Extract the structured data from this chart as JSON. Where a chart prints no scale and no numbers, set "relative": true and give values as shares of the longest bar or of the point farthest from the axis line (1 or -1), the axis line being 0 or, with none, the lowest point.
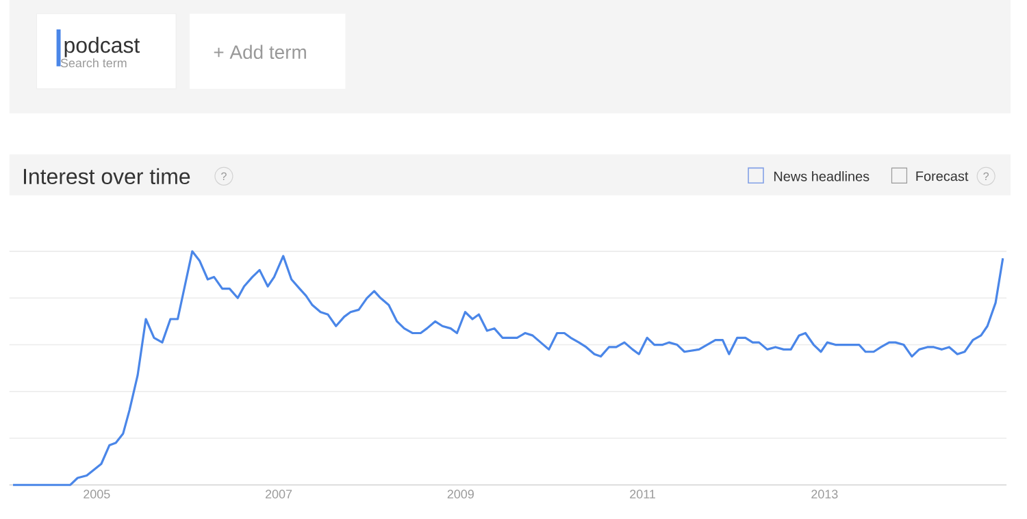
{
  "chart_data": {
    "type": "line",
    "title": "Interest over time",
    "relative": true,
    "grid": "y",
    "legend": "top left",
    "line_style": "solid",
    "marker": "none",
    "xlim": [
      2004.04,
      2015.0
    ],
    "xticks": [
      2005,
      2007,
      2009,
      2011,
      2013
    ],
    "annotations": [
      "Search term",
      "+ Add term",
      "News headlines",
      "Forecast",
      "?",
      "?"
    ],
    "series": [
      {
        "name": "podcast",
        "color": "#4a86e8",
        "x": [
          2004.08,
          2004.71,
          2004.79,
          2004.89,
          2005.05,
          2005.14,
          2005.21,
          2005.29,
          2005.36,
          2005.45,
          2005.54,
          2005.63,
          2005.72,
          2005.81,
          2005.89,
          2006.05,
          2006.13,
          2006.22,
          2006.29,
          2006.38,
          2006.46,
          2006.55,
          2006.62,
          2006.71,
          2006.79,
          2006.88,
          2006.95,
          2007.05,
          2007.14,
          2007.23,
          2007.3,
          2007.37,
          2007.46,
          2007.54,
          2007.63,
          2007.72,
          2007.79,
          2007.88,
          2007.97,
          2008.05,
          2008.12,
          2008.21,
          2008.3,
          2008.38,
          2008.47,
          2008.56,
          2008.63,
          2008.72,
          2008.8,
          2008.89,
          2008.96,
          2009.05,
          2009.13,
          2009.2,
          2009.29,
          2009.37,
          2009.46,
          2009.53,
          2009.62,
          2009.71,
          2009.79,
          2009.88,
          2009.97,
          2010.06,
          2010.14,
          2010.21,
          2010.3,
          2010.38,
          2010.47,
          2010.54,
          2010.63,
          2010.71,
          2010.8,
          2010.89,
          2010.96,
          2011.05,
          2011.13,
          2011.22,
          2011.29,
          2011.38,
          2011.46,
          2011.62,
          2011.71,
          2011.8,
          2011.88,
          2011.95,
          2012.04,
          2012.13,
          2012.21,
          2012.28,
          2012.37,
          2012.46,
          2012.55,
          2012.63,
          2012.72,
          2012.79,
          2012.88,
          2012.96,
          2013.03,
          2013.12,
          2013.21,
          2013.3,
          2013.38,
          2013.45,
          2013.54,
          2013.62,
          2013.71,
          2013.78,
          2013.87,
          2013.96,
          2014.04,
          2014.13,
          2014.2,
          2014.29,
          2014.37,
          2014.46,
          2014.54,
          2014.63,
          2014.72,
          2014.79,
          2014.88,
          2014.96
        ],
        "values": [
          0,
          0,
          0.03,
          0.04,
          0.09,
          0.17,
          0.18,
          0.22,
          0.32,
          0.47,
          0.71,
          0.63,
          0.61,
          0.71,
          0.71,
          1,
          0.96,
          0.88,
          0.89,
          0.84,
          0.84,
          0.8,
          0.85,
          0.89,
          0.92,
          0.85,
          0.89,
          0.98,
          0.88,
          0.84,
          0.81,
          0.77,
          0.74,
          0.73,
          0.68,
          0.72,
          0.74,
          0.75,
          0.8,
          0.83,
          0.8,
          0.77,
          0.7,
          0.67,
          0.65,
          0.65,
          0.67,
          0.7,
          0.68,
          0.67,
          0.65,
          0.74,
          0.71,
          0.73,
          0.66,
          0.67,
          0.63,
          0.63,
          0.63,
          0.65,
          0.64,
          0.61,
          0.58,
          0.65,
          0.65,
          0.63,
          0.61,
          0.59,
          0.56,
          0.55,
          0.59,
          0.59,
          0.61,
          0.58,
          0.56,
          0.63,
          0.6,
          0.6,
          0.61,
          0.6,
          0.57,
          0.58,
          0.6,
          0.62,
          0.62,
          0.56,
          0.63,
          0.63,
          0.61,
          0.61,
          0.58,
          0.59,
          0.58,
          0.58,
          0.64,
          0.65,
          0.6,
          0.57,
          0.61,
          0.6,
          0.6,
          0.6,
          0.6,
          0.57,
          0.57,
          0.59,
          0.61,
          0.61,
          0.6,
          0.55,
          0.58,
          0.59,
          0.59,
          0.58,
          0.59,
          0.56,
          0.57,
          0.62,
          0.64,
          0.68,
          0.78,
          0.97
        ]
      }
    ]
  }
}
